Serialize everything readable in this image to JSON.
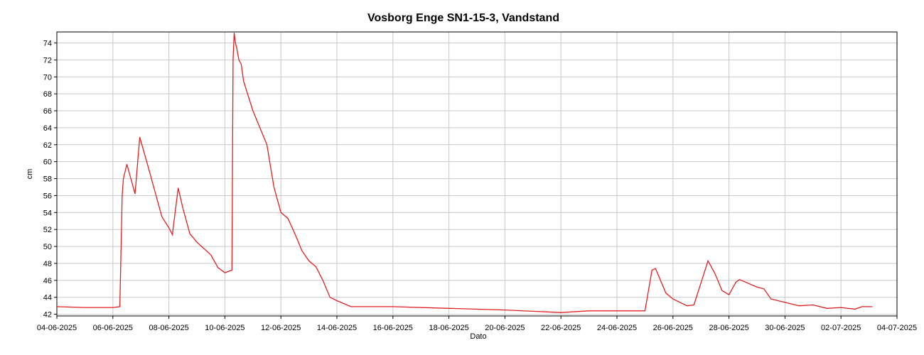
{
  "chart_data": {
    "type": "line",
    "title": "Vosborg Enge SN1-15-3, Vandstand",
    "xlabel": "Dato",
    "ylabel": "cm",
    "x": [
      "2025-06-04T00:00",
      "2025-06-05T00:00",
      "2025-06-06T00:00",
      "2025-06-06T06:00",
      "2025-06-06T08:00",
      "2025-06-06T09:00",
      "2025-06-06T12:00",
      "2025-06-06T19:00",
      "2025-06-06T23:00",
      "2025-06-07T06:00",
      "2025-06-07T12:00",
      "2025-06-07T18:00",
      "2025-06-08T00:00",
      "2025-06-08T03:00",
      "2025-06-08T08:00",
      "2025-06-08T12:00",
      "2025-06-08T18:00",
      "2025-06-09T00:00",
      "2025-06-09T12:00",
      "2025-06-09T18:00",
      "2025-06-10T00:00",
      "2025-06-10T06:00",
      "2025-06-10T07:00",
      "2025-06-10T08:00",
      "2025-06-10T09:00",
      "2025-06-10T10:00",
      "2025-06-10T12:00",
      "2025-06-10T14:00",
      "2025-06-10T16:00",
      "2025-06-11T00:00",
      "2025-06-11T12:00",
      "2025-06-11T18:00",
      "2025-06-12T00:00",
      "2025-06-12T06:00",
      "2025-06-12T12:00",
      "2025-06-12T18:00",
      "2025-06-13T00:00",
      "2025-06-13T06:00",
      "2025-06-13T12:00",
      "2025-06-13T18:00",
      "2025-06-14T00:00",
      "2025-06-14T12:00",
      "2025-06-16T00:00",
      "2025-06-18T00:00",
      "2025-06-20T00:00",
      "2025-06-22T00:00",
      "2025-06-23T00:00",
      "2025-06-24T00:00",
      "2025-06-25T00:00",
      "2025-06-25T06:00",
      "2025-06-25T09:00",
      "2025-06-25T18:00",
      "2025-06-26T00:00",
      "2025-06-26T12:00",
      "2025-06-26T18:00",
      "2025-06-27T06:00",
      "2025-06-27T12:00",
      "2025-06-27T18:00",
      "2025-06-28T00:00",
      "2025-06-28T06:00",
      "2025-06-28T09:00",
      "2025-06-29T00:00",
      "2025-06-29T06:00",
      "2025-06-29T12:00",
      "2025-06-30T00:00",
      "2025-06-30T12:00",
      "2025-07-01T00:00",
      "2025-07-01T12:00",
      "2025-07-02T00:00",
      "2025-07-02T12:00",
      "2025-07-02T18:00",
      "2025-07-03T00:00",
      "2025-07-03T03:00"
    ],
    "series": [
      {
        "name": "Vandstand",
        "color": "#e02020",
        "values": [
          42.9,
          42.8,
          42.8,
          42.9,
          56,
          58,
          59.7,
          56.2,
          62.9,
          59.5,
          56.5,
          53.5,
          52.2,
          51.4,
          56.9,
          54.5,
          51.5,
          50.5,
          49,
          47.5,
          46.9,
          47.2,
          72,
          75.2,
          74,
          73.5,
          72,
          71.5,
          69.5,
          66,
          62,
          57,
          54,
          53.3,
          51.5,
          49.5,
          48.3,
          47.6,
          46,
          44,
          43.6,
          42.9,
          42.9,
          42.7,
          42.5,
          42.2,
          42.4,
          42.4,
          42.4,
          47.2,
          47.4,
          44.5,
          43.8,
          43,
          43.1,
          48.3,
          46.8,
          44.8,
          44.3,
          45.8,
          46.1,
          45.2,
          45,
          43.8,
          43.4,
          43,
          43.1,
          42.7,
          42.8,
          42.6,
          42.9,
          42.9,
          42.9
        ]
      }
    ],
    "xlim": [
      "2025-06-04T00:00",
      "2025-07-04T00:00"
    ],
    "xticks": [
      {
        "value": "2025-06-04T00:00",
        "label": "04-06-2025"
      },
      {
        "value": "2025-06-06T00:00",
        "label": "06-06-2025"
      },
      {
        "value": "2025-06-08T00:00",
        "label": "08-06-2025"
      },
      {
        "value": "2025-06-10T00:00",
        "label": "10-06-2025"
      },
      {
        "value": "2025-06-12T00:00",
        "label": "12-06-2025"
      },
      {
        "value": "2025-06-14T00:00",
        "label": "14-06-2025"
      },
      {
        "value": "2025-06-16T00:00",
        "label": "16-06-2025"
      },
      {
        "value": "2025-06-18T00:00",
        "label": "18-06-2025"
      },
      {
        "value": "2025-06-20T00:00",
        "label": "20-06-2025"
      },
      {
        "value": "2025-06-22T00:00",
        "label": "22-06-2025"
      },
      {
        "value": "2025-06-24T00:00",
        "label": "24-06-2025"
      },
      {
        "value": "2025-06-26T00:00",
        "label": "26-06-2025"
      },
      {
        "value": "2025-06-28T00:00",
        "label": "28-06-2025"
      },
      {
        "value": "2025-06-30T00:00",
        "label": "30-06-2025"
      },
      {
        "value": "2025-07-02T00:00",
        "label": "02-07-2025"
      },
      {
        "value": "2025-07-04T00:00",
        "label": "04-07-2025"
      }
    ],
    "ylim": [
      41.8,
      75.3
    ],
    "yticks": [
      42,
      44,
      46,
      48,
      50,
      52,
      54,
      56,
      58,
      60,
      62,
      64,
      66,
      68,
      70,
      72,
      74
    ],
    "grid": true
  }
}
